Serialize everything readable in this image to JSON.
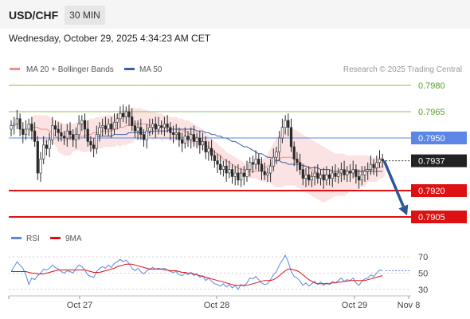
{
  "header": {
    "pair": "USD/CHF",
    "timeframe": "30 MIN",
    "datetime": "Wednesday, October 29, 2025 4:34:23 AM CET"
  },
  "colors": {
    "ma20": "#f08c8c",
    "band": "#fbd9d9",
    "ma50": "#3a5fa8",
    "price_line": "#5b86e5",
    "support": "#dd1111",
    "resistance": "#8bc34a",
    "arrow": "#2f5597",
    "candle": "#2a2a2a",
    "rsi": "#5b86e5",
    "rsi_ma": "#dd1111",
    "current_badge": "#222222"
  },
  "chart_data": [
    {
      "type": "candlestick",
      "title": "USD/CHF",
      "timeframe": "30 MIN",
      "legend": [
        {
          "name": "MA 20 + Bollinger Bands",
          "color": "#f08c8c"
        },
        {
          "name": "MA 50",
          "color": "#3a5fa8"
        }
      ],
      "credit": "Research © 2025 Trading Central",
      "ylim": [
        0.7898,
        0.799
      ],
      "x_labels": [
        "Oct 27",
        "Oct 28",
        "Oct 29",
        "Nov 8"
      ],
      "current_price": "0.7937",
      "levels": [
        {
          "value": "0.7980",
          "kind": "resistance"
        },
        {
          "value": "0.7965",
          "kind": "resistance"
        },
        {
          "value": "0.7950",
          "kind": "pivot"
        },
        {
          "value": "0.7920",
          "kind": "support"
        },
        {
          "value": "0.7905",
          "kind": "support"
        }
      ],
      "forecast": {
        "from": 0.7937,
        "to": 0.7905,
        "direction": "down"
      },
      "close": [
        0.7957,
        0.7958,
        0.7961,
        0.7955,
        0.7952,
        0.7955,
        0.7958,
        0.7954,
        0.7948,
        0.793,
        0.7938,
        0.7946,
        0.7944,
        0.7949,
        0.7957,
        0.7955,
        0.7953,
        0.7951,
        0.795,
        0.7954,
        0.7952,
        0.7949,
        0.7952,
        0.7958,
        0.796,
        0.7955,
        0.7948,
        0.7946,
        0.7944,
        0.7952,
        0.7956,
        0.7957,
        0.7955,
        0.7958,
        0.7955,
        0.7959,
        0.7961,
        0.7964,
        0.7962,
        0.7965,
        0.7962,
        0.7957,
        0.7954,
        0.7956,
        0.7952,
        0.7949,
        0.7954,
        0.7956,
        0.7958,
        0.7955,
        0.7957,
        0.7956,
        0.7958,
        0.7956,
        0.7953,
        0.7952,
        0.7953,
        0.7949,
        0.7947,
        0.7951,
        0.7949,
        0.7952,
        0.7948,
        0.795,
        0.7946,
        0.7948,
        0.7942,
        0.7944,
        0.794,
        0.7937,
        0.7935,
        0.7932,
        0.7934,
        0.793,
        0.7932,
        0.7928,
        0.793,
        0.7926,
        0.793,
        0.7928,
        0.7932,
        0.7936,
        0.7935,
        0.7938,
        0.7935,
        0.7931,
        0.7929,
        0.793,
        0.7934,
        0.7939,
        0.7942,
        0.795,
        0.7956,
        0.796,
        0.7956,
        0.7945,
        0.7938,
        0.7936,
        0.7932,
        0.7927,
        0.7929,
        0.7926,
        0.7928,
        0.793,
        0.7927,
        0.7929,
        0.7926,
        0.7929,
        0.7927,
        0.793,
        0.7928,
        0.793,
        0.7932,
        0.7929,
        0.7931,
        0.793,
        0.7932,
        0.7928,
        0.7926,
        0.7929,
        0.7931,
        0.7932,
        0.7935,
        0.7933,
        0.7936,
        0.7938,
        0.7937
      ],
      "ma20": [
        0.7955,
        0.7956,
        0.7956,
        0.7956,
        0.7955,
        0.7955,
        0.7955,
        0.7954,
        0.7953,
        0.7951,
        0.795,
        0.7949,
        0.7949,
        0.7949,
        0.795,
        0.7951,
        0.7951,
        0.7951,
        0.7951,
        0.7951,
        0.7952,
        0.7952,
        0.7953,
        0.7953,
        0.7953,
        0.7954,
        0.7954,
        0.7954,
        0.7954,
        0.7955,
        0.7955,
        0.7956,
        0.7956,
        0.7957,
        0.7957,
        0.7958,
        0.7958,
        0.7958,
        0.7958,
        0.7958,
        0.7958,
        0.7957,
        0.7957,
        0.7957,
        0.7956,
        0.7956,
        0.7956,
        0.7955,
        0.7955,
        0.7955,
        0.7955,
        0.7955,
        0.7954,
        0.7954,
        0.7953,
        0.7952,
        0.7951,
        0.795,
        0.7949,
        0.7948,
        0.7946,
        0.7945,
        0.7944,
        0.7942,
        0.7941,
        0.794,
        0.7938,
        0.7937,
        0.7936,
        0.7935,
        0.7934,
        0.7933,
        0.7932,
        0.7932,
        0.7931,
        0.7931,
        0.7931,
        0.7931,
        0.7931,
        0.7932,
        0.7933,
        0.7934,
        0.7935,
        0.7936,
        0.7937,
        0.7938,
        0.7939,
        0.7939,
        0.7939,
        0.7939,
        0.7938,
        0.7937,
        0.7936,
        0.7935,
        0.7934,
        0.7933,
        0.7932,
        0.7931,
        0.793,
        0.7929,
        0.7929,
        0.7929,
        0.7929,
        0.7929,
        0.7929,
        0.7929,
        0.7929,
        0.7929,
        0.793,
        0.793,
        0.793,
        0.7931,
        0.7931,
        0.7931,
        0.7932,
        0.7932,
        0.7932,
        0.7932,
        0.7933,
        0.7933,
        0.7934
      ],
      "bb_upper": [
        0.7962,
        0.7963,
        0.7963,
        0.7963,
        0.7963,
        0.7963,
        0.7962,
        0.7961,
        0.796,
        0.796,
        0.7959,
        0.7958,
        0.7958,
        0.7958,
        0.7958,
        0.7959,
        0.7959,
        0.796,
        0.796,
        0.796,
        0.7961,
        0.7961,
        0.7962,
        0.7962,
        0.7962,
        0.7963,
        0.7963,
        0.7963,
        0.7963,
        0.7964,
        0.7965,
        0.7966,
        0.7966,
        0.7967,
        0.7967,
        0.7967,
        0.7967,
        0.7967,
        0.7966,
        0.7966,
        0.7965,
        0.7965,
        0.7965,
        0.7964,
        0.7964,
        0.7963,
        0.7963,
        0.7962,
        0.7962,
        0.7962,
        0.7961,
        0.7961,
        0.796,
        0.796,
        0.7959,
        0.7958,
        0.7957,
        0.7956,
        0.7955,
        0.7953,
        0.7951,
        0.795,
        0.7948,
        0.7947,
        0.7945,
        0.7944,
        0.7942,
        0.7941,
        0.794,
        0.7939,
        0.7938,
        0.7937,
        0.7936,
        0.7935,
        0.7935,
        0.7935,
        0.7935,
        0.7936,
        0.7937,
        0.7939,
        0.7941,
        0.7944,
        0.7947,
        0.795,
        0.7952,
        0.7954,
        0.7955,
        0.7955,
        0.7955,
        0.7955,
        0.7954,
        0.7953,
        0.7952,
        0.7951,
        0.795,
        0.7949,
        0.7948,
        0.7947,
        0.7946,
        0.7945,
        0.7944,
        0.7943,
        0.7942,
        0.7941,
        0.7941,
        0.7941,
        0.7941,
        0.794,
        0.794,
        0.794,
        0.794,
        0.794,
        0.794,
        0.794,
        0.794,
        0.7939,
        0.7939,
        0.7939,
        0.7939,
        0.7939
      ],
      "bb_lower": [
        0.7948,
        0.7949,
        0.7949,
        0.7949,
        0.7947,
        0.7947,
        0.7948,
        0.7947,
        0.7946,
        0.7942,
        0.7941,
        0.794,
        0.794,
        0.794,
        0.7942,
        0.7943,
        0.7943,
        0.7942,
        0.7942,
        0.7942,
        0.7943,
        0.7943,
        0.7944,
        0.7944,
        0.7944,
        0.7945,
        0.7945,
        0.7945,
        0.7945,
        0.7946,
        0.7945,
        0.7946,
        0.7946,
        0.7947,
        0.7947,
        0.7949,
        0.7949,
        0.7949,
        0.795,
        0.795,
        0.7951,
        0.7949,
        0.7949,
        0.795,
        0.7948,
        0.7949,
        0.7949,
        0.7948,
        0.7948,
        0.7948,
        0.7949,
        0.7949,
        0.7948,
        0.7948,
        0.7947,
        0.7946,
        0.7945,
        0.7944,
        0.7943,
        0.7943,
        0.7941,
        0.794,
        0.794,
        0.7937,
        0.7937,
        0.7936,
        0.7934,
        0.7933,
        0.7932,
        0.7931,
        0.793,
        0.7929,
        0.7928,
        0.7929,
        0.7927,
        0.7927,
        0.7927,
        0.7926,
        0.7925,
        0.7925,
        0.7925,
        0.7924,
        0.7923,
        0.7922,
        0.7922,
        0.7922,
        0.7923,
        0.7923,
        0.7923,
        0.7923,
        0.7922,
        0.7921,
        0.792,
        0.7919,
        0.7918,
        0.7917,
        0.7916,
        0.7915,
        0.7914,
        0.7913,
        0.7914,
        0.7915,
        0.7916,
        0.7917,
        0.7917,
        0.7917,
        0.7917,
        0.7918,
        0.792,
        0.792,
        0.792,
        0.7922,
        0.7922,
        0.7922,
        0.7925,
        0.7925,
        0.7925,
        0.7925,
        0.7927,
        0.7927,
        0.7929
      ],
      "ma50": [
        0.7951,
        0.7951,
        0.7951,
        0.7951,
        0.7951,
        0.7951,
        0.7952,
        0.7952,
        0.7952,
        0.7952,
        0.7952,
        0.7953,
        0.7953,
        0.7953,
        0.7953,
        0.7953,
        0.7953,
        0.7953,
        0.7953,
        0.7954,
        0.7954,
        0.7954,
        0.7954,
        0.7954,
        0.7954,
        0.7955,
        0.7955,
        0.7955,
        0.7955,
        0.7955,
        0.7955,
        0.7955,
        0.7955,
        0.7955,
        0.7954,
        0.7954,
        0.7954,
        0.7953,
        0.7953,
        0.7952,
        0.7952,
        0.7951,
        0.7951,
        0.795,
        0.795,
        0.7949,
        0.7948,
        0.7948,
        0.7947,
        0.7946,
        0.7945,
        0.7945,
        0.7944,
        0.7943,
        0.7942,
        0.7941,
        0.7941,
        0.794,
        0.7939,
        0.7939,
        0.7938,
        0.7937,
        0.7937,
        0.7936,
        0.7936,
        0.7935,
        0.7935,
        0.7935,
        0.7935,
        0.7935,
        0.7934,
        0.7934,
        0.7933,
        0.7933,
        0.7933,
        0.7933,
        0.7932,
        0.7932,
        0.7932,
        0.7932,
        0.7931,
        0.7931,
        0.7931,
        0.7931,
        0.7931,
        0.7931,
        0.7931,
        0.7931,
        0.7931,
        0.7931,
        0.7931,
        0.7931,
        0.7931,
        0.7931,
        0.7931,
        0.7931,
        0.7931,
        0.7931
      ]
    },
    {
      "type": "line",
      "title": "RSI",
      "legend": [
        {
          "name": "RSI",
          "color": "#5b86e5"
        },
        {
          "name": "9MA",
          "color": "#dd1111"
        }
      ],
      "ylim": [
        25,
        78
      ],
      "y_ticks": [
        "70",
        "50",
        "30"
      ],
      "series": [
        {
          "name": "RSI",
          "values": [
            52,
            58,
            64,
            60,
            56,
            48,
            36,
            44,
            42,
            47,
            50,
            55,
            54,
            56,
            60,
            57,
            55,
            52,
            50,
            53,
            52,
            50,
            56,
            60,
            58,
            54,
            48,
            46,
            45,
            52,
            56,
            58,
            56,
            60,
            57,
            62,
            64,
            67,
            64,
            66,
            62,
            56,
            53,
            56,
            52,
            49,
            53,
            55,
            57,
            55,
            56,
            55,
            56,
            54,
            52,
            51,
            52,
            48,
            47,
            50,
            48,
            51,
            47,
            49,
            45,
            47,
            41,
            44,
            40,
            37,
            36,
            34,
            37,
            33,
            36,
            32,
            35,
            30,
            36,
            34,
            38,
            44,
            43,
            46,
            42,
            38,
            36,
            37,
            42,
            48,
            52,
            60,
            66,
            72,
            64,
            52,
            46,
            44,
            40,
            35,
            38,
            34,
            37,
            40,
            36,
            39,
            35,
            38,
            36,
            40,
            38,
            41,
            44,
            40,
            42,
            41,
            44,
            38,
            35,
            40,
            43,
            44,
            48,
            46,
            50,
            54,
            53
          ]
        },
        {
          "name": "9MA",
          "values": [
            52,
            52,
            52,
            52,
            52,
            52,
            51,
            50,
            50,
            49,
            49,
            49,
            50,
            51,
            52,
            53,
            54,
            54,
            54,
            54,
            54,
            54,
            54,
            54,
            54,
            54,
            53,
            52,
            51,
            51,
            51,
            52,
            53,
            54,
            55,
            56,
            58,
            59,
            60,
            61,
            61,
            61,
            60,
            59,
            58,
            57,
            56,
            55,
            55,
            55,
            55,
            55,
            54,
            54,
            53,
            53,
            53,
            52,
            51,
            51,
            50,
            50,
            49,
            48,
            47,
            46,
            45,
            44,
            43,
            42,
            41,
            40,
            39,
            38,
            37,
            36,
            35,
            35,
            35,
            35,
            35,
            36,
            37,
            38,
            39,
            40,
            41,
            41,
            41,
            42,
            44,
            47,
            50,
            53,
            55,
            55,
            54,
            53,
            51,
            48,
            45,
            42,
            40,
            38,
            37,
            37,
            37,
            37,
            37,
            38,
            38,
            39,
            39,
            40,
            40,
            41,
            41,
            41,
            41,
            41,
            41,
            42,
            43,
            44,
            45,
            46,
            47
          ]
        }
      ]
    }
  ]
}
